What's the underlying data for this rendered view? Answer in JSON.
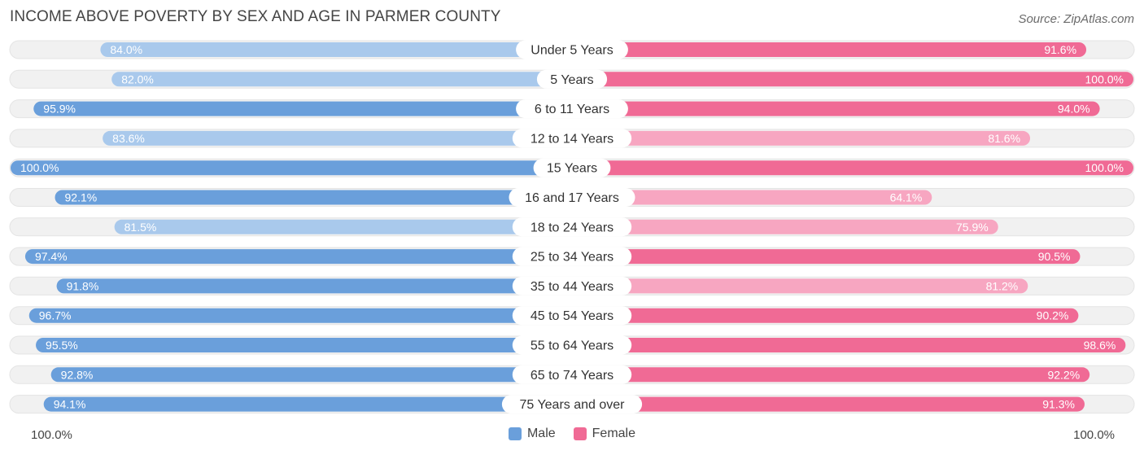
{
  "header": {
    "title": "INCOME ABOVE POVERTY BY SEX AND AGE IN PARMER COUNTY",
    "source": "Source: ZipAtlas.com"
  },
  "axis": {
    "left_label": "100.0%",
    "right_label": "100.0%"
  },
  "legend": {
    "male_label": "Male",
    "female_label": "Female"
  },
  "colors": {
    "male_strong": "#6a9fdb",
    "male_light": "#a9c9ec",
    "female_strong": "#f06a95",
    "female_light": "#f7a6c1",
    "track": "#f1f1f1"
  },
  "chart_data": {
    "type": "bar",
    "orientation": "horizontal-diverging",
    "title": "INCOME ABOVE POVERTY BY SEX AND AGE IN PARMER COUNTY",
    "xlim": [
      0,
      100
    ],
    "categories": [
      "Under 5 Years",
      "5 Years",
      "6 to 11 Years",
      "12 to 14 Years",
      "15 Years",
      "16 and 17 Years",
      "18 to 24 Years",
      "25 to 34 Years",
      "35 to 44 Years",
      "45 to 54 Years",
      "55 to 64 Years",
      "65 to 74 Years",
      "75 Years and over"
    ],
    "series": [
      {
        "name": "Male",
        "values": [
          84.0,
          82.0,
          95.9,
          83.6,
          100.0,
          92.1,
          81.5,
          97.4,
          91.8,
          96.7,
          95.5,
          92.8,
          94.1
        ],
        "labels": [
          "84.0%",
          "82.0%",
          "95.9%",
          "83.6%",
          "100.0%",
          "92.1%",
          "81.5%",
          "97.4%",
          "91.8%",
          "96.7%",
          "95.5%",
          "92.8%",
          "94.1%"
        ]
      },
      {
        "name": "Female",
        "values": [
          91.6,
          100.0,
          94.0,
          81.6,
          100.0,
          64.1,
          75.9,
          90.5,
          81.2,
          90.2,
          98.6,
          92.2,
          91.3
        ],
        "labels": [
          "91.6%",
          "100.0%",
          "94.0%",
          "81.6%",
          "100.0%",
          "64.1%",
          "75.9%",
          "90.5%",
          "81.2%",
          "90.2%",
          "98.6%",
          "92.2%",
          "91.3%"
        ]
      }
    ],
    "legend_position": "bottom-center"
  }
}
